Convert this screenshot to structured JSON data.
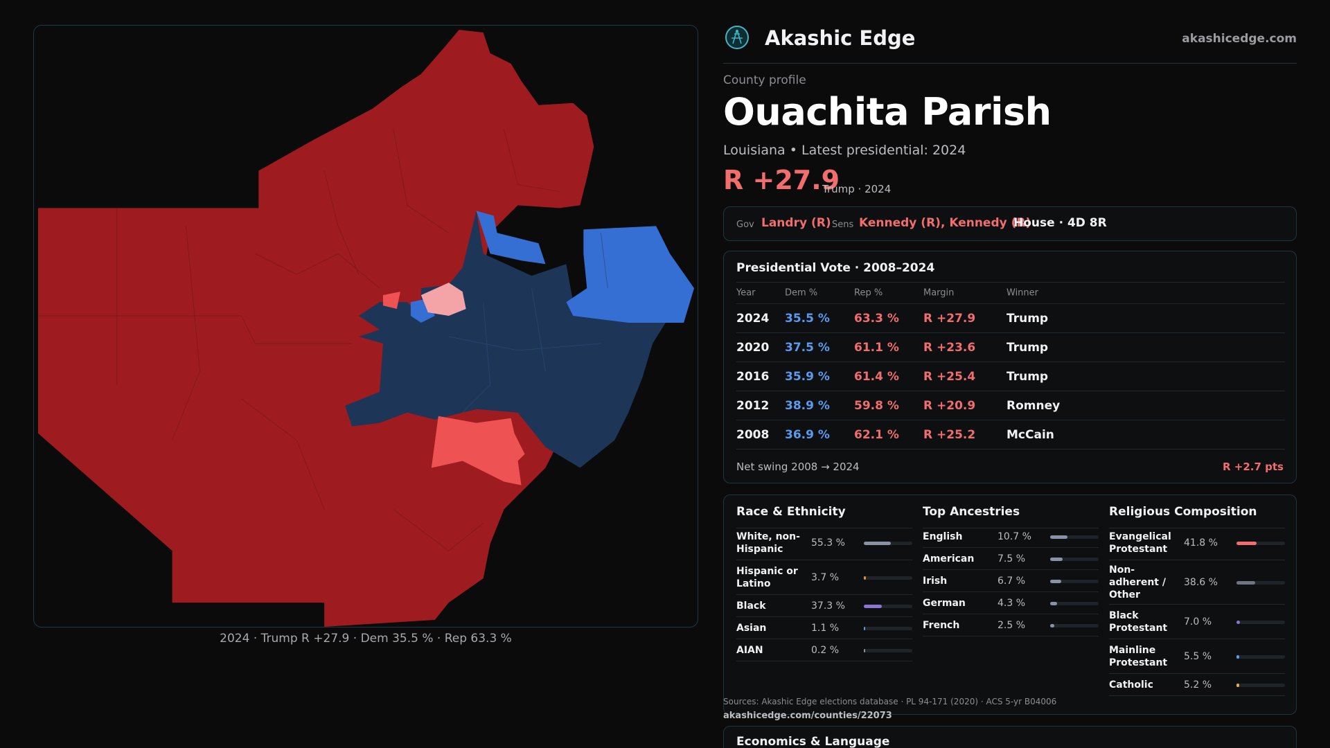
{
  "brand": {
    "name": "Akashic Edge",
    "url": "akashicedge.com"
  },
  "map": {
    "caption": "2024 · Trump R +27.9 · Dem 35.5 % · Rep 63.3 %"
  },
  "profile": {
    "eyebrow": "County profile",
    "title": "Ouachita Parish",
    "subtitle": "Louisiana • Latest presidential: 2024",
    "margin": "R +27.9",
    "margin_note": "Trump · 2024"
  },
  "officials": {
    "gov_label": "Gov",
    "gov": "Landry (R)",
    "sens_label": "Sens",
    "sens": "Kennedy (R), Kennedy (R)",
    "house": "House · 4D 8R"
  },
  "presidential": {
    "title": "Presidential Vote · 2008–2024",
    "headers": {
      "year": "Year",
      "dem": "Dem %",
      "rep": "Rep %",
      "margin": "Margin",
      "winner": "Winner"
    },
    "rows": [
      {
        "year": "2024",
        "dem": "35.5 %",
        "rep": "63.3 %",
        "margin": "R +27.9",
        "winner": "Trump"
      },
      {
        "year": "2020",
        "dem": "37.5 %",
        "rep": "61.1 %",
        "margin": "R +23.6",
        "winner": "Trump"
      },
      {
        "year": "2016",
        "dem": "35.9 %",
        "rep": "61.4 %",
        "margin": "R +25.4",
        "winner": "Trump"
      },
      {
        "year": "2012",
        "dem": "38.9 %",
        "rep": "59.8 %",
        "margin": "R +20.9",
        "winner": "Romney"
      },
      {
        "year": "2008",
        "dem": "36.9 %",
        "rep": "62.1 %",
        "margin": "R +25.2",
        "winner": "McCain"
      }
    ],
    "swing_label": "Net swing 2008 → 2024",
    "swing_value": "R +2.7 pts"
  },
  "race": {
    "title": "Race & Ethnicity",
    "rows": [
      {
        "name": "White, non-Hispanic",
        "pct": "55.3 %",
        "value": 55.3,
        "color": "#8a93a6"
      },
      {
        "name": "Hispanic or Latino",
        "pct": "3.7 %",
        "value": 3.7,
        "color": "#e8893a"
      },
      {
        "name": "Black",
        "pct": "37.3 %",
        "value": 37.3,
        "color": "#8b74d6"
      },
      {
        "name": "Asian",
        "pct": "1.1 %",
        "value": 1.1,
        "color": "#5a9bf0"
      },
      {
        "name": "AIAN",
        "pct": "0.2 %",
        "value": 0.2,
        "color": "#8a93a6"
      }
    ]
  },
  "ancestry": {
    "title": "Top Ancestries",
    "rows": [
      {
        "name": "English",
        "pct": "10.7 %",
        "value": 10.7,
        "color": "#8a93a6"
      },
      {
        "name": "American",
        "pct": "7.5 %",
        "value": 7.5,
        "color": "#8a93a6"
      },
      {
        "name": "Irish",
        "pct": "6.7 %",
        "value": 6.7,
        "color": "#8a93a6"
      },
      {
        "name": "German",
        "pct": "4.3 %",
        "value": 4.3,
        "color": "#8a93a6"
      },
      {
        "name": "French",
        "pct": "2.5 %",
        "value": 2.5,
        "color": "#8a93a6"
      }
    ]
  },
  "religion": {
    "title": "Religious Composition",
    "rows": [
      {
        "name": "Evangelical Protestant",
        "pct": "41.8 %",
        "value": 41.8,
        "color": "#f26d6d"
      },
      {
        "name": "Non-adherent / Other",
        "pct": "38.6 %",
        "value": 38.6,
        "color": "#6e7480"
      },
      {
        "name": "Black Protestant",
        "pct": "7.0 %",
        "value": 7.0,
        "color": "#8b74d6"
      },
      {
        "name": "Mainline Protestant",
        "pct": "5.5 %",
        "value": 5.5,
        "color": "#5a9bf0"
      },
      {
        "name": "Catholic",
        "pct": "5.2 %",
        "value": 5.2,
        "color": "#e8b23a"
      }
    ]
  },
  "sources": {
    "text": "Sources: Akashic Edge elections database · PL 94-171 (2020) · ACS 5-yr B04006",
    "url": "akashicedge.com/counties/22073"
  },
  "economics": {
    "title": "Economics & Language"
  },
  "colors": {
    "rep_strong": "#9e1c20",
    "rep_light": "#ef5252",
    "rep_pale": "#f4a3a6",
    "dem_strong": "#1d3557",
    "dem_light": "#356fd4",
    "accent_red": "#f26d6d",
    "accent_blue": "#5a9bf0"
  }
}
